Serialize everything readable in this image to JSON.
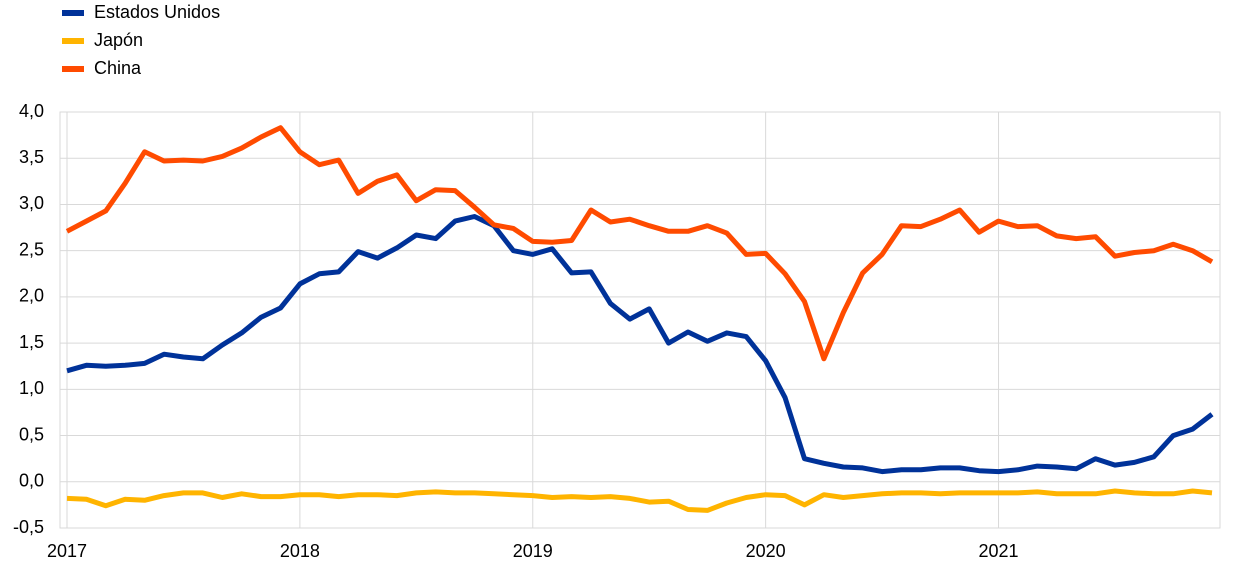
{
  "chart_data": {
    "type": "line",
    "categories": [
      "2017",
      null,
      null,
      null,
      null,
      null,
      null,
      null,
      null,
      null,
      null,
      null,
      "2018",
      null,
      null,
      null,
      null,
      null,
      null,
      null,
      null,
      null,
      null,
      null,
      "2019",
      null,
      null,
      null,
      null,
      null,
      null,
      null,
      null,
      null,
      null,
      null,
      "2020",
      null,
      null,
      null,
      null,
      null,
      null,
      null,
      null,
      null,
      null,
      null,
      "2021",
      null,
      null,
      null,
      null,
      null,
      null,
      null,
      null,
      null,
      null,
      null
    ],
    "series": [
      {
        "name": "Estados Unidos",
        "color": "#003299",
        "values": [
          1.2,
          1.26,
          1.25,
          1.26,
          1.28,
          1.38,
          1.35,
          1.33,
          1.48,
          1.61,
          1.78,
          1.88,
          2.14,
          2.25,
          2.27,
          2.49,
          2.42,
          2.53,
          2.67,
          2.63,
          2.82,
          2.87,
          2.77,
          2.5,
          2.46,
          2.52,
          2.26,
          2.27,
          1.93,
          1.76,
          1.87,
          1.5,
          1.62,
          1.52,
          1.61,
          1.57,
          1.31,
          0.91,
          0.25,
          0.2,
          0.16,
          0.15,
          0.11,
          0.13,
          0.13,
          0.15,
          0.15,
          0.12,
          0.11,
          0.13,
          0.17,
          0.16,
          0.14,
          0.25,
          0.18,
          0.21,
          0.27,
          0.5,
          0.57,
          0.73
        ]
      },
      {
        "name": "Japón",
        "color": "#ffb400",
        "values": [
          -0.18,
          -0.19,
          -0.26,
          -0.19,
          -0.2,
          -0.15,
          -0.12,
          -0.12,
          -0.17,
          -0.13,
          -0.16,
          -0.16,
          -0.14,
          -0.14,
          -0.16,
          -0.14,
          -0.14,
          -0.15,
          -0.12,
          -0.11,
          -0.12,
          -0.12,
          -0.13,
          -0.14,
          -0.15,
          -0.17,
          -0.16,
          -0.17,
          -0.16,
          -0.18,
          -0.22,
          -0.21,
          -0.3,
          -0.31,
          -0.23,
          -0.17,
          -0.14,
          -0.15,
          -0.25,
          -0.14,
          -0.17,
          -0.15,
          -0.13,
          -0.12,
          -0.12,
          -0.13,
          -0.12,
          -0.12,
          -0.12,
          -0.12,
          -0.11,
          -0.13,
          -0.13,
          -0.13,
          -0.1,
          -0.12,
          -0.13,
          -0.13,
          -0.1,
          -0.12
        ]
      },
      {
        "name": "China",
        "color": "#ff4b00",
        "values": [
          2.71,
          2.82,
          2.93,
          3.23,
          3.57,
          3.47,
          3.48,
          3.47,
          3.52,
          3.61,
          3.73,
          3.83,
          3.57,
          3.43,
          3.48,
          3.12,
          3.25,
          3.32,
          3.04,
          3.16,
          3.15,
          2.97,
          2.78,
          2.74,
          2.6,
          2.59,
          2.61,
          2.94,
          2.81,
          2.84,
          2.77,
          2.71,
          2.71,
          2.77,
          2.69,
          2.46,
          2.47,
          2.25,
          1.95,
          1.33,
          1.83,
          2.26,
          2.46,
          2.77,
          2.76,
          2.84,
          2.94,
          2.7,
          2.82,
          2.76,
          2.77,
          2.66,
          2.63,
          2.65,
          2.44,
          2.48,
          2.5,
          2.57,
          2.5,
          2.38
        ]
      }
    ],
    "ylim": [
      -0.5,
      4.0
    ],
    "yticks": [
      {
        "value": -0.5,
        "label": "-0,5"
      },
      {
        "value": 0,
        "label": "0,0"
      },
      {
        "value": 0.5,
        "label": "0,5"
      },
      {
        "value": 1,
        "label": "1,0"
      },
      {
        "value": 1.5,
        "label": "1,5"
      },
      {
        "value": 2,
        "label": "2,0"
      },
      {
        "value": 2.5,
        "label": "2,5"
      },
      {
        "value": 3,
        "label": "3,0"
      },
      {
        "value": 3.5,
        "label": "3,5"
      },
      {
        "value": 4,
        "label": "4,0"
      }
    ],
    "grid": true,
    "legend": "top-left"
  }
}
